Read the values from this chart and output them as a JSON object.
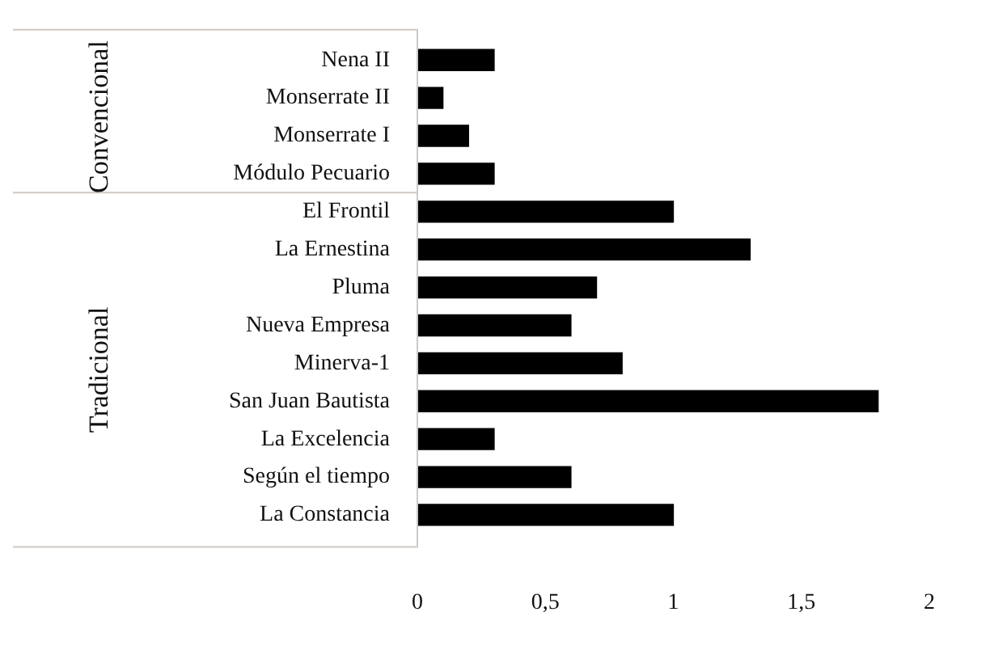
{
  "chart_data": {
    "type": "bar",
    "orientation": "horizontal",
    "categories": [
      "Nena II",
      "Monserrate II",
      "Monserrate I",
      "Módulo Pecuario",
      "El Frontil",
      "La Ernestina",
      "Pluma",
      "Nueva Empresa",
      "Minerva-1",
      "San Juan Bautista",
      "La Excelencia",
      "Según el tiempo",
      "La Constancia"
    ],
    "values": [
      0.3,
      0.1,
      0.2,
      0.3,
      1.0,
      1.3,
      0.7,
      0.6,
      0.8,
      1.8,
      0.3,
      0.6,
      1.0
    ],
    "color": "#000000",
    "xlim": [
      0,
      2
    ],
    "xticks": [
      0,
      {
        "value": 0.5,
        "label": "0,5"
      },
      1,
      {
        "value": 1.5,
        "label": "1,5"
      },
      2
    ],
    "grid": false,
    "legend": false,
    "annotations": [
      "Convencional",
      "Tradicional"
    ]
  }
}
